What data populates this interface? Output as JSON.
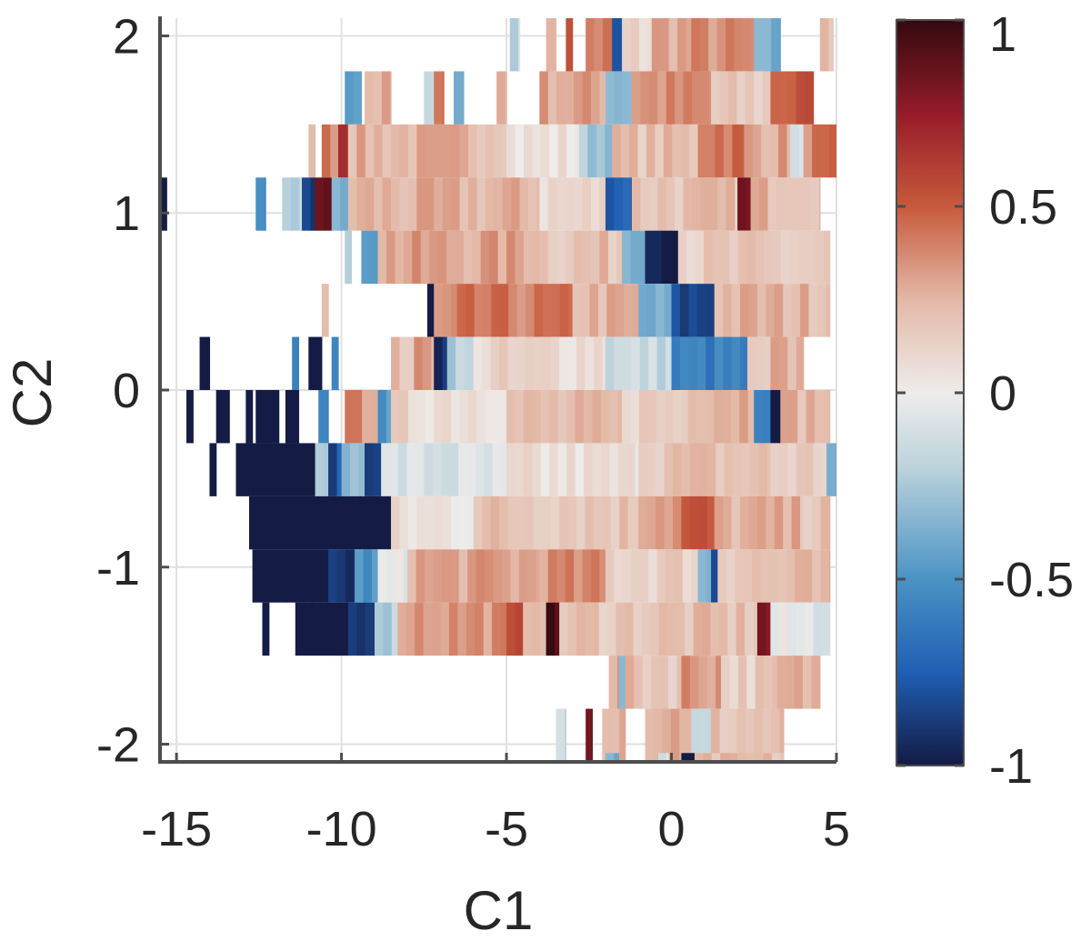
{
  "chart_data": {
    "type": "heatmap",
    "title": "",
    "xlabel": "C1",
    "ylabel": "C2",
    "xlim": [
      -15.5,
      5
    ],
    "ylim": [
      -2.1,
      2.1
    ],
    "xticks": [
      -15,
      -10,
      -5,
      0,
      5
    ],
    "yticks": [
      -2,
      -1,
      0,
      1,
      2
    ],
    "xtick_labels": [
      "-15",
      "-10",
      "-5",
      "0",
      "5"
    ],
    "ytick_labels": [
      "-2",
      "-1",
      "0",
      "1",
      "2"
    ],
    "grid": true,
    "colormap": "diverging blue-white-red",
    "colormap_stops": [
      {
        "v": -1.0,
        "c": "#141b45"
      },
      {
        "v": -0.75,
        "c": "#1f5fb4"
      },
      {
        "v": -0.5,
        "c": "#4a93c4"
      },
      {
        "v": -0.2,
        "c": "#bcd3dc"
      },
      {
        "v": 0.0,
        "c": "#eeeceb"
      },
      {
        "v": 0.25,
        "c": "#e3b8a6"
      },
      {
        "v": 0.5,
        "c": "#c75a3c"
      },
      {
        "v": 0.75,
        "c": "#951b29"
      },
      {
        "v": 1.0,
        "c": "#330a0f"
      }
    ],
    "clim": [
      -1,
      1
    ],
    "colorbar": {
      "ticks": [
        1,
        0.5,
        0,
        -0.5,
        -1
      ],
      "tick_labels": [
        "1",
        "0.5",
        "0",
        "-0.5",
        "-1"
      ],
      "placement": "right"
    },
    "bin_height": 0.3,
    "rows": [
      {
        "y": 1.95,
        "segments": [
          {
            "x0": -4.9,
            "x1": -4.6,
            "v": -0.15
          },
          {
            "x0": -3.8,
            "x1": -3.5,
            "v": 0.3
          },
          {
            "x0": -3.2,
            "x1": -3.0,
            "v": 0.5
          },
          {
            "x0": -2.6,
            "x1": -1.8,
            "v": 0.4
          },
          {
            "x0": -1.8,
            "x1": -1.5,
            "v": -0.8
          },
          {
            "x0": -1.5,
            "x1": -0.6,
            "v": 0.1
          },
          {
            "x0": -0.6,
            "x1": 0.6,
            "v": 0.3
          },
          {
            "x0": 0.6,
            "x1": 2.5,
            "v": 0.35
          },
          {
            "x0": 2.5,
            "x1": 3.3,
            "v": -0.4
          },
          {
            "x0": 4.5,
            "x1": 4.9,
            "v": 0.2
          }
        ]
      },
      {
        "y": 1.65,
        "segments": [
          {
            "x0": -9.9,
            "x1": -9.4,
            "v": -0.4
          },
          {
            "x0": -9.3,
            "x1": -8.5,
            "v": 0.25
          },
          {
            "x0": -7.5,
            "x1": -7.2,
            "v": -0.2
          },
          {
            "x0": -7.2,
            "x1": -6.9,
            "v": 0.5
          },
          {
            "x0": -6.6,
            "x1": -6.3,
            "v": -0.4
          },
          {
            "x0": -5.3,
            "x1": -5.0,
            "v": 0.3
          },
          {
            "x0": -4.0,
            "x1": -2.0,
            "v": 0.3
          },
          {
            "x0": -2.0,
            "x1": -1.2,
            "v": -0.3
          },
          {
            "x0": -1.2,
            "x1": 1.2,
            "v": 0.35
          },
          {
            "x0": 1.2,
            "x1": 3.0,
            "v": 0.15
          },
          {
            "x0": 3.0,
            "x1": 4.3,
            "v": 0.5
          }
        ]
      },
      {
        "y": 1.35,
        "segments": [
          {
            "x0": -11.0,
            "x1": -10.8,
            "v": 0.3
          },
          {
            "x0": -10.6,
            "x1": -10.1,
            "v": 0.4
          },
          {
            "x0": -10.1,
            "x1": -9.8,
            "v": 0.7
          },
          {
            "x0": -9.8,
            "x1": -5.0,
            "v": 0.25
          },
          {
            "x0": -5.0,
            "x1": -2.8,
            "v": 0.05
          },
          {
            "x0": -2.8,
            "x1": -1.8,
            "v": -0.25
          },
          {
            "x0": -1.8,
            "x1": 0.8,
            "v": 0.2
          },
          {
            "x0": 0.8,
            "x1": 2.2,
            "v": 0.45
          },
          {
            "x0": 2.2,
            "x1": 3.6,
            "v": 0.3
          },
          {
            "x0": 3.6,
            "x1": 4.0,
            "v": -0.15
          },
          {
            "x0": 4.0,
            "x1": 5.0,
            "v": 0.4
          }
        ]
      },
      {
        "y": 1.05,
        "segments": [
          {
            "x0": -15.5,
            "x1": -15.3,
            "v": -1.0
          },
          {
            "x0": -12.6,
            "x1": -12.3,
            "v": -0.6
          },
          {
            "x0": -11.8,
            "x1": -11.2,
            "v": -0.2
          },
          {
            "x0": -11.2,
            "x1": -10.8,
            "v": -0.9
          },
          {
            "x0": -10.8,
            "x1": -10.3,
            "v": 0.9
          },
          {
            "x0": -10.3,
            "x1": -9.8,
            "v": -0.4
          },
          {
            "x0": -9.8,
            "x1": -4.0,
            "v": 0.25
          },
          {
            "x0": -4.0,
            "x1": -2.0,
            "v": 0.1
          },
          {
            "x0": -2.0,
            "x1": -1.2,
            "v": -0.7
          },
          {
            "x0": -1.2,
            "x1": 2.0,
            "v": 0.2
          },
          {
            "x0": 2.0,
            "x1": 2.4,
            "v": 0.8
          },
          {
            "x0": 2.4,
            "x1": 4.5,
            "v": 0.25
          }
        ]
      },
      {
        "y": 0.75,
        "segments": [
          {
            "x0": -9.9,
            "x1": -9.7,
            "v": -0.3
          },
          {
            "x0": -9.4,
            "x1": -8.9,
            "v": -0.4
          },
          {
            "x0": -8.9,
            "x1": -4.0,
            "v": 0.3
          },
          {
            "x0": -4.0,
            "x1": -1.5,
            "v": 0.2
          },
          {
            "x0": -1.5,
            "x1": -0.8,
            "v": -0.3
          },
          {
            "x0": -0.8,
            "x1": -0.3,
            "v": -0.95
          },
          {
            "x0": -0.3,
            "x1": 0.2,
            "v": -1.0
          },
          {
            "x0": 0.2,
            "x1": 4.8,
            "v": 0.15
          }
        ]
      },
      {
        "y": 0.45,
        "segments": [
          {
            "x0": -10.6,
            "x1": -10.4,
            "v": 0.2
          },
          {
            "x0": -7.4,
            "x1": -7.2,
            "v": -1.0
          },
          {
            "x0": -7.2,
            "x1": -6.5,
            "v": 0.3
          },
          {
            "x0": -6.5,
            "x1": -3.0,
            "v": 0.4
          },
          {
            "x0": -3.0,
            "x1": -1.0,
            "v": 0.25
          },
          {
            "x0": -1.0,
            "x1": 0.0,
            "v": -0.4
          },
          {
            "x0": 0.0,
            "x1": 1.3,
            "v": -0.85
          },
          {
            "x0": 1.3,
            "x1": 4.8,
            "v": 0.25
          }
        ]
      },
      {
        "y": 0.15,
        "segments": [
          {
            "x0": -14.3,
            "x1": -14.0,
            "v": -1.0
          },
          {
            "x0": -11.5,
            "x1": -11.3,
            "v": -0.5
          },
          {
            "x0": -11.0,
            "x1": -10.6,
            "v": -1.0
          },
          {
            "x0": -10.3,
            "x1": -10.1,
            "v": -0.6
          },
          {
            "x0": -8.5,
            "x1": -7.8,
            "v": 0.2
          },
          {
            "x0": -7.8,
            "x1": -7.2,
            "v": 0.3
          },
          {
            "x0": -7.2,
            "x1": -6.8,
            "v": -0.9
          },
          {
            "x0": -6.8,
            "x1": -6.0,
            "v": -0.2
          },
          {
            "x0": -6.0,
            "x1": -2.0,
            "v": 0.1
          },
          {
            "x0": -2.0,
            "x1": 0.0,
            "v": -0.15
          },
          {
            "x0": 0.0,
            "x1": 2.3,
            "v": -0.6
          },
          {
            "x0": 2.3,
            "x1": 3.0,
            "v": 0.1
          },
          {
            "x0": 3.0,
            "x1": 4.0,
            "v": 0.25
          }
        ]
      },
      {
        "y": -0.15,
        "segments": [
          {
            "x0": -14.7,
            "x1": -14.5,
            "v": -1.0
          },
          {
            "x0": -13.8,
            "x1": -13.4,
            "v": -1.0
          },
          {
            "x0": -12.9,
            "x1": -12.7,
            "v": -1.0
          },
          {
            "x0": -12.6,
            "x1": -11.9,
            "v": -1.0
          },
          {
            "x0": -11.7,
            "x1": -11.3,
            "v": -1.0
          },
          {
            "x0": -10.7,
            "x1": -10.4,
            "v": -0.5
          },
          {
            "x0": -9.9,
            "x1": -8.9,
            "v": 0.35
          },
          {
            "x0": -8.9,
            "x1": -8.5,
            "v": -0.5
          },
          {
            "x0": -8.5,
            "x1": -5.0,
            "v": 0.1
          },
          {
            "x0": -5.0,
            "x1": -1.5,
            "v": 0.2
          },
          {
            "x0": -1.5,
            "x1": 0.5,
            "v": 0.15
          },
          {
            "x0": 0.5,
            "x1": 2.5,
            "v": 0.3
          },
          {
            "x0": 2.5,
            "x1": 3.0,
            "v": -0.5
          },
          {
            "x0": 3.0,
            "x1": 3.3,
            "v": -1.0
          },
          {
            "x0": 3.3,
            "x1": 4.8,
            "v": 0.25
          }
        ]
      },
      {
        "y": -0.45,
        "segments": [
          {
            "x0": -14.0,
            "x1": -13.8,
            "v": -1.0
          },
          {
            "x0": -13.2,
            "x1": -10.8,
            "v": -1.0
          },
          {
            "x0": -10.8,
            "x1": -10.4,
            "v": -0.3
          },
          {
            "x0": -10.4,
            "x1": -10.0,
            "v": -0.8
          },
          {
            "x0": -10.0,
            "x1": -9.3,
            "v": -0.3
          },
          {
            "x0": -9.3,
            "x1": -8.8,
            "v": -0.8
          },
          {
            "x0": -8.8,
            "x1": -5.0,
            "v": -0.1
          },
          {
            "x0": -5.0,
            "x1": -1.0,
            "v": 0.05
          },
          {
            "x0": -1.0,
            "x1": 3.0,
            "v": 0.2
          },
          {
            "x0": 3.0,
            "x1": 4.7,
            "v": 0.15
          },
          {
            "x0": 4.7,
            "x1": 5.0,
            "v": -0.4
          }
        ]
      },
      {
        "y": -0.75,
        "segments": [
          {
            "x0": -12.8,
            "x1": -8.5,
            "v": -1.0
          },
          {
            "x0": -8.5,
            "x1": -6.0,
            "v": 0.05
          },
          {
            "x0": -6.0,
            "x1": -1.0,
            "v": 0.2
          },
          {
            "x0": -1.0,
            "x1": 0.3,
            "v": 0.35
          },
          {
            "x0": 0.3,
            "x1": 1.3,
            "v": 0.5
          },
          {
            "x0": 1.3,
            "x1": 4.0,
            "v": 0.25
          },
          {
            "x0": 4.0,
            "x1": 4.8,
            "v": 0.2
          }
        ]
      },
      {
        "y": -1.05,
        "segments": [
          {
            "x0": -12.7,
            "x1": -10.4,
            "v": -1.0
          },
          {
            "x0": -10.4,
            "x1": -9.6,
            "v": -0.9
          },
          {
            "x0": -9.6,
            "x1": -8.9,
            "v": -0.5
          },
          {
            "x0": -8.9,
            "x1": -8.0,
            "v": -0.05
          },
          {
            "x0": -8.0,
            "x1": -4.0,
            "v": 0.3
          },
          {
            "x0": -4.0,
            "x1": -2.0,
            "v": 0.35
          },
          {
            "x0": -2.0,
            "x1": 0.8,
            "v": 0.15
          },
          {
            "x0": 0.8,
            "x1": 1.2,
            "v": -0.35
          },
          {
            "x0": 1.2,
            "x1": 1.4,
            "v": -0.8
          },
          {
            "x0": 1.4,
            "x1": 4.8,
            "v": 0.2
          }
        ]
      },
      {
        "y": -1.35,
        "segments": [
          {
            "x0": -12.4,
            "x1": -12.2,
            "v": -1.0
          },
          {
            "x0": -11.4,
            "x1": -9.8,
            "v": -1.0
          },
          {
            "x0": -9.8,
            "x1": -9.0,
            "v": -0.9
          },
          {
            "x0": -9.0,
            "x1": -8.3,
            "v": -0.2
          },
          {
            "x0": -8.3,
            "x1": -5.0,
            "v": 0.35
          },
          {
            "x0": -5.0,
            "x1": -4.5,
            "v": 0.5
          },
          {
            "x0": -4.5,
            "x1": -3.8,
            "v": 0.3
          },
          {
            "x0": -3.8,
            "x1": -3.4,
            "v": 0.9
          },
          {
            "x0": -3.4,
            "x1": -2.2,
            "v": 0.2
          },
          {
            "x0": -2.2,
            "x1": 2.6,
            "v": 0.2
          },
          {
            "x0": 2.6,
            "x1": 3.0,
            "v": 0.8
          },
          {
            "x0": 3.0,
            "x1": 4.8,
            "v": -0.05
          }
        ]
      },
      {
        "y": -1.65,
        "segments": [
          {
            "x0": -1.9,
            "x1": -1.6,
            "v": 0.3
          },
          {
            "x0": -1.6,
            "x1": -1.4,
            "v": -0.3
          },
          {
            "x0": -1.4,
            "x1": 0.3,
            "v": 0.2
          },
          {
            "x0": 0.3,
            "x1": 1.5,
            "v": 0.35
          },
          {
            "x0": 1.5,
            "x1": 3.2,
            "v": 0.15
          },
          {
            "x0": 3.2,
            "x1": 4.5,
            "v": 0.25
          }
        ]
      },
      {
        "y": -1.95,
        "segments": [
          {
            "x0": -3.5,
            "x1": -3.2,
            "v": -0.1
          },
          {
            "x0": -2.6,
            "x1": -2.4,
            "v": 0.9
          },
          {
            "x0": -2.1,
            "x1": -1.4,
            "v": 0.3
          },
          {
            "x0": -0.8,
            "x1": 0.6,
            "v": 0.3
          },
          {
            "x0": 0.6,
            "x1": 1.2,
            "v": -0.2
          },
          {
            "x0": 1.2,
            "x1": 3.4,
            "v": 0.2
          }
        ]
      },
      {
        "y": -2.2,
        "segments": [
          {
            "x0": -2.0,
            "x1": -1.6,
            "v": -0.4
          },
          {
            "x0": -0.4,
            "x1": -0.1,
            "v": -0.1
          },
          {
            "x0": 0.3,
            "x1": 0.7,
            "v": -1.0
          },
          {
            "x0": 0.7,
            "x1": 3.4,
            "v": 0.2
          }
        ]
      }
    ]
  }
}
